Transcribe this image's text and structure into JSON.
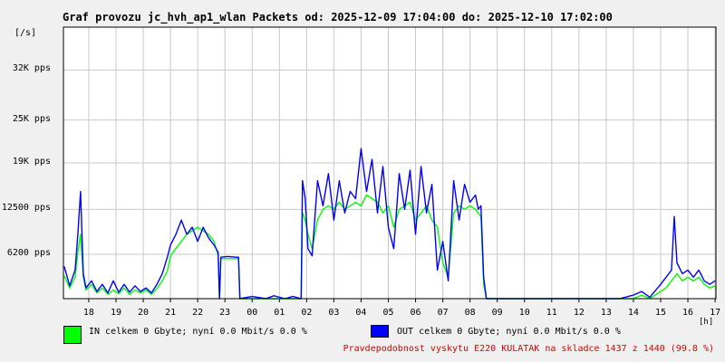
{
  "chart_data": {
    "type": "line",
    "title": "Graf provozu jc_hvh_ap1_wlan Packets od: 2025-12-09 17:04:00 do: 2025-12-10 17:02:00",
    "ylabel": "[/s]",
    "xlabel": "[h]",
    "ylim": [
      0,
      38000
    ],
    "y_ticks": [
      {
        "value": 6200,
        "label": "6200 pps"
      },
      {
        "value": 12500,
        "label": "12500 pps"
      },
      {
        "value": 19000,
        "label": "19K pps"
      },
      {
        "value": 25000,
        "label": "25K pps"
      },
      {
        "value": 32000,
        "label": "32K pps"
      }
    ],
    "xlim": [
      17.07,
      41.03
    ],
    "x_ticks": [
      {
        "value": 18,
        "label": "18"
      },
      {
        "value": 19,
        "label": "19"
      },
      {
        "value": 20,
        "label": "20"
      },
      {
        "value": 21,
        "label": "21"
      },
      {
        "value": 22,
        "label": "22"
      },
      {
        "value": 23,
        "label": "23"
      },
      {
        "value": 24,
        "label": "00"
      },
      {
        "value": 25,
        "label": "01"
      },
      {
        "value": 26,
        "label": "02"
      },
      {
        "value": 27,
        "label": "03"
      },
      {
        "value": 28,
        "label": "04"
      },
      {
        "value": 29,
        "label": "05"
      },
      {
        "value": 30,
        "label": "06"
      },
      {
        "value": 31,
        "label": "07"
      },
      {
        "value": 32,
        "label": "08"
      },
      {
        "value": 33,
        "label": "09"
      },
      {
        "value": 34,
        "label": "10"
      },
      {
        "value": 35,
        "label": "11"
      },
      {
        "value": 36,
        "label": "12"
      },
      {
        "value": 37,
        "label": "13"
      },
      {
        "value": 38,
        "label": "14"
      },
      {
        "value": 39,
        "label": "15"
      },
      {
        "value": 40,
        "label": "16"
      },
      {
        "value": 41,
        "label": "17"
      }
    ],
    "grid": true,
    "series": [
      {
        "name": "IN",
        "color": "#00ff00",
        "points": [
          [
            17.1,
            3200
          ],
          [
            17.3,
            1500
          ],
          [
            17.5,
            3000
          ],
          [
            17.6,
            6500
          ],
          [
            17.7,
            9000
          ],
          [
            17.8,
            3000
          ],
          [
            17.9,
            1200
          ],
          [
            18.1,
            2000
          ],
          [
            18.3,
            800
          ],
          [
            18.5,
            1500
          ],
          [
            18.7,
            600
          ],
          [
            18.9,
            1200
          ],
          [
            19.1,
            700
          ],
          [
            19.3,
            1500
          ],
          [
            19.5,
            600
          ],
          [
            19.7,
            1200
          ],
          [
            19.9,
            800
          ],
          [
            20.1,
            1200
          ],
          [
            20.3,
            600
          ],
          [
            20.5,
            1400
          ],
          [
            20.7,
            2500
          ],
          [
            20.9,
            4000
          ],
          [
            21.0,
            6000
          ],
          [
            21.2,
            7000
          ],
          [
            21.4,
            8000
          ],
          [
            21.6,
            9000
          ],
          [
            21.8,
            9500
          ],
          [
            22.0,
            10000
          ],
          [
            22.2,
            9500
          ],
          [
            22.4,
            9000
          ],
          [
            22.6,
            8000
          ],
          [
            22.75,
            6000
          ],
          [
            22.8,
            0
          ],
          [
            22.85,
            5600
          ],
          [
            23.1,
            5600
          ],
          [
            23.4,
            5600
          ],
          [
            23.5,
            5600
          ],
          [
            23.55,
            0
          ],
          [
            24.0,
            0
          ],
          [
            24.5,
            0
          ],
          [
            25.0,
            0
          ],
          [
            25.5,
            0
          ],
          [
            25.8,
            0
          ],
          [
            25.85,
            12000
          ],
          [
            25.95,
            11000
          ],
          [
            26.05,
            9000
          ],
          [
            26.2,
            7000
          ],
          [
            26.4,
            11000
          ],
          [
            26.6,
            12500
          ],
          [
            26.8,
            13000
          ],
          [
            27.0,
            12500
          ],
          [
            27.2,
            13500
          ],
          [
            27.4,
            12500
          ],
          [
            27.6,
            13000
          ],
          [
            27.8,
            13500
          ],
          [
            28.0,
            13000
          ],
          [
            28.2,
            14500
          ],
          [
            28.4,
            14000
          ],
          [
            28.6,
            13500
          ],
          [
            28.8,
            12000
          ],
          [
            29.0,
            13000
          ],
          [
            29.2,
            10000
          ],
          [
            29.4,
            12500
          ],
          [
            29.6,
            13000
          ],
          [
            29.8,
            13500
          ],
          [
            30.0,
            11000
          ],
          [
            30.2,
            12000
          ],
          [
            30.4,
            13000
          ],
          [
            30.6,
            11000
          ],
          [
            30.8,
            10000
          ],
          [
            31.0,
            5000
          ],
          [
            31.2,
            3000
          ],
          [
            31.4,
            12000
          ],
          [
            31.6,
            13000
          ],
          [
            31.8,
            12500
          ],
          [
            32.0,
            13000
          ],
          [
            32.2,
            12500
          ],
          [
            32.3,
            12000
          ],
          [
            32.4,
            11500
          ],
          [
            32.5,
            2000
          ],
          [
            32.6,
            0
          ],
          [
            33.0,
            0
          ],
          [
            34.0,
            0
          ],
          [
            35.0,
            0
          ],
          [
            36.0,
            0
          ],
          [
            37.0,
            0
          ],
          [
            37.5,
            0
          ],
          [
            38.0,
            0
          ],
          [
            38.3,
            500
          ],
          [
            38.6,
            0
          ],
          [
            39.0,
            1000
          ],
          [
            39.2,
            1500
          ],
          [
            39.4,
            2500
          ],
          [
            39.6,
            3500
          ],
          [
            39.8,
            2500
          ],
          [
            40.0,
            3000
          ],
          [
            40.2,
            2500
          ],
          [
            40.4,
            3000
          ],
          [
            40.6,
            2000
          ],
          [
            40.8,
            1500
          ],
          [
            41.0,
            1800
          ]
        ]
      },
      {
        "name": "OUT",
        "color": "#0000ff",
        "points": [
          [
            17.1,
            4500
          ],
          [
            17.3,
            1800
          ],
          [
            17.5,
            4000
          ],
          [
            17.6,
            9000
          ],
          [
            17.7,
            15000
          ],
          [
            17.8,
            3500
          ],
          [
            17.9,
            1500
          ],
          [
            18.1,
            2500
          ],
          [
            18.3,
            1000
          ],
          [
            18.5,
            2000
          ],
          [
            18.7,
            800
          ],
          [
            18.9,
            2500
          ],
          [
            19.1,
            900
          ],
          [
            19.3,
            2000
          ],
          [
            19.5,
            900
          ],
          [
            19.7,
            1800
          ],
          [
            19.9,
            1000
          ],
          [
            20.1,
            1500
          ],
          [
            20.3,
            800
          ],
          [
            20.5,
            2000
          ],
          [
            20.7,
            3500
          ],
          [
            20.9,
            6000
          ],
          [
            21.0,
            7500
          ],
          [
            21.2,
            9000
          ],
          [
            21.4,
            11000
          ],
          [
            21.6,
            9000
          ],
          [
            21.8,
            10000
          ],
          [
            22.0,
            8000
          ],
          [
            22.2,
            10000
          ],
          [
            22.4,
            8500
          ],
          [
            22.6,
            7500
          ],
          [
            22.75,
            6500
          ],
          [
            22.8,
            0
          ],
          [
            22.85,
            5800
          ],
          [
            23.1,
            5900
          ],
          [
            23.4,
            5800
          ],
          [
            23.5,
            5800
          ],
          [
            23.55,
            0
          ],
          [
            24.0,
            300
          ],
          [
            24.5,
            0
          ],
          [
            24.8,
            400
          ],
          [
            25.2,
            0
          ],
          [
            25.5,
            300
          ],
          [
            25.8,
            0
          ],
          [
            25.85,
            16500
          ],
          [
            25.95,
            14000
          ],
          [
            26.05,
            7000
          ],
          [
            26.2,
            6000
          ],
          [
            26.4,
            16500
          ],
          [
            26.6,
            13000
          ],
          [
            26.8,
            17500
          ],
          [
            27.0,
            11000
          ],
          [
            27.2,
            16500
          ],
          [
            27.4,
            12000
          ],
          [
            27.6,
            15000
          ],
          [
            27.8,
            14000
          ],
          [
            28.0,
            21000
          ],
          [
            28.2,
            15000
          ],
          [
            28.4,
            19500
          ],
          [
            28.6,
            12000
          ],
          [
            28.8,
            18500
          ],
          [
            29.0,
            10000
          ],
          [
            29.2,
            7000
          ],
          [
            29.4,
            17500
          ],
          [
            29.6,
            12500
          ],
          [
            29.8,
            18000
          ],
          [
            30.0,
            9000
          ],
          [
            30.2,
            18500
          ],
          [
            30.4,
            12000
          ],
          [
            30.6,
            16000
          ],
          [
            30.8,
            4000
          ],
          [
            31.0,
            8000
          ],
          [
            31.2,
            2500
          ],
          [
            31.4,
            16500
          ],
          [
            31.6,
            11000
          ],
          [
            31.8,
            16000
          ],
          [
            32.0,
            13500
          ],
          [
            32.2,
            14500
          ],
          [
            32.3,
            12500
          ],
          [
            32.4,
            13000
          ],
          [
            32.5,
            3000
          ],
          [
            32.6,
            0
          ],
          [
            33.0,
            0
          ],
          [
            34.0,
            0
          ],
          [
            35.0,
            0
          ],
          [
            36.0,
            0
          ],
          [
            37.0,
            0
          ],
          [
            37.5,
            0
          ],
          [
            38.0,
            500
          ],
          [
            38.3,
            1000
          ],
          [
            38.6,
            200
          ],
          [
            39.0,
            2000
          ],
          [
            39.2,
            3000
          ],
          [
            39.4,
            4000
          ],
          [
            39.5,
            11500
          ],
          [
            39.6,
            5000
          ],
          [
            39.8,
            3500
          ],
          [
            40.0,
            4000
          ],
          [
            40.2,
            3000
          ],
          [
            40.4,
            4000
          ],
          [
            40.6,
            2500
          ],
          [
            40.8,
            2000
          ],
          [
            41.0,
            2500
          ]
        ]
      }
    ]
  },
  "legend": {
    "in_text": "IN celkem 0 Gbyte; nyní   0.0 Mbit/s 0.0 %",
    "out_text": "OUT celkem 0 Gbyte; nyní   0.0 Mbit/s 0.0 %",
    "in_color": "#00ff00",
    "out_color": "#0000ff"
  },
  "footer_text": "Pravdepodobnost vyskytu E220 KULATAK na skladce 1437 z 1440 (99.8 %)"
}
